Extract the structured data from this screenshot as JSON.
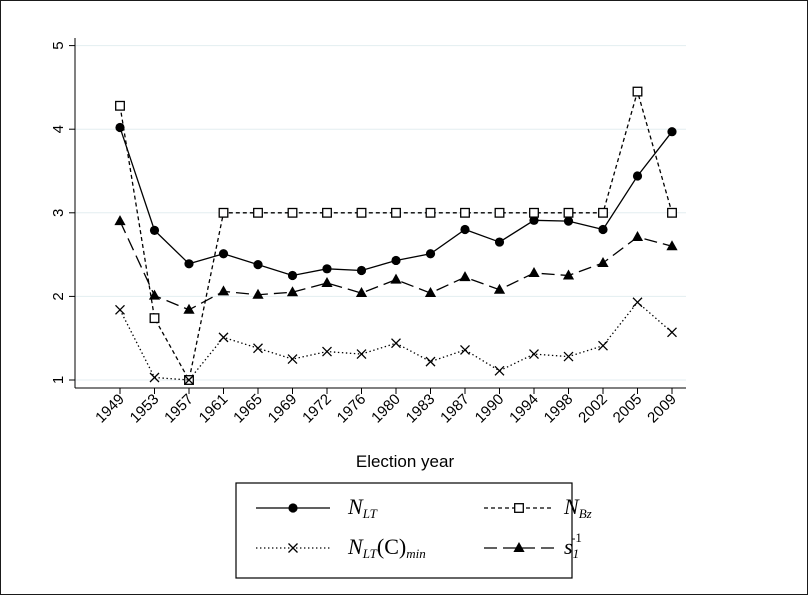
{
  "chart_data": {
    "type": "line",
    "title": "",
    "xlabel": "Election year",
    "ylabel": "",
    "ylim": [
      1,
      5
    ],
    "yticks": [
      1,
      2,
      3,
      4,
      5
    ],
    "grid": true,
    "legend_position": "bottom",
    "categories": [
      "1949",
      "1953",
      "1957",
      "1961",
      "1965",
      "1969",
      "1972",
      "1976",
      "1980",
      "1983",
      "1987",
      "1990",
      "1994",
      "1998",
      "2002",
      "2005",
      "2009"
    ],
    "series": [
      {
        "key": "nlt",
        "legend": {
          "main": "N",
          "sub": "LT",
          "suffix": "",
          "suffix_sub": "",
          "sup": ""
        },
        "line_style": "solid",
        "marker": "filled-circle",
        "values": [
          4.02,
          2.79,
          2.39,
          2.51,
          2.38,
          2.25,
          2.33,
          2.31,
          2.43,
          2.51,
          2.8,
          2.65,
          2.91,
          2.9,
          2.8,
          3.44,
          3.97
        ]
      },
      {
        "key": "nbz",
        "legend": {
          "main": "N",
          "sub": "Bz",
          "suffix": "",
          "suffix_sub": "",
          "sup": ""
        },
        "line_style": "short-dash",
        "marker": "hollow-square",
        "values": [
          4.28,
          1.74,
          1.0,
          3.0,
          3.0,
          3.0,
          3.0,
          3.0,
          3.0,
          3.0,
          3.0,
          3.0,
          3.0,
          3.0,
          3.0,
          4.45,
          3.0
        ]
      },
      {
        "key": "nltc",
        "legend": {
          "main": "N",
          "sub": "LT",
          "suffix": "(C)",
          "suffix_sub": "min",
          "sup": ""
        },
        "line_style": "dotted",
        "marker": "x",
        "values": [
          1.84,
          1.03,
          1.0,
          1.51,
          1.38,
          1.25,
          1.34,
          1.31,
          1.44,
          1.22,
          1.36,
          1.11,
          1.31,
          1.28,
          1.41,
          1.93,
          1.57
        ]
      },
      {
        "key": "s1inv",
        "legend": {
          "main": "s",
          "sub": "1",
          "suffix": "",
          "suffix_sub": "",
          "sup": "-1"
        },
        "line_style": "long-dash",
        "marker": "filled-triangle",
        "values": [
          2.9,
          2.01,
          1.84,
          2.06,
          2.02,
          2.05,
          2.16,
          2.04,
          2.2,
          2.04,
          2.23,
          2.08,
          2.28,
          2.25,
          2.4,
          2.71,
          2.6
        ]
      }
    ]
  }
}
